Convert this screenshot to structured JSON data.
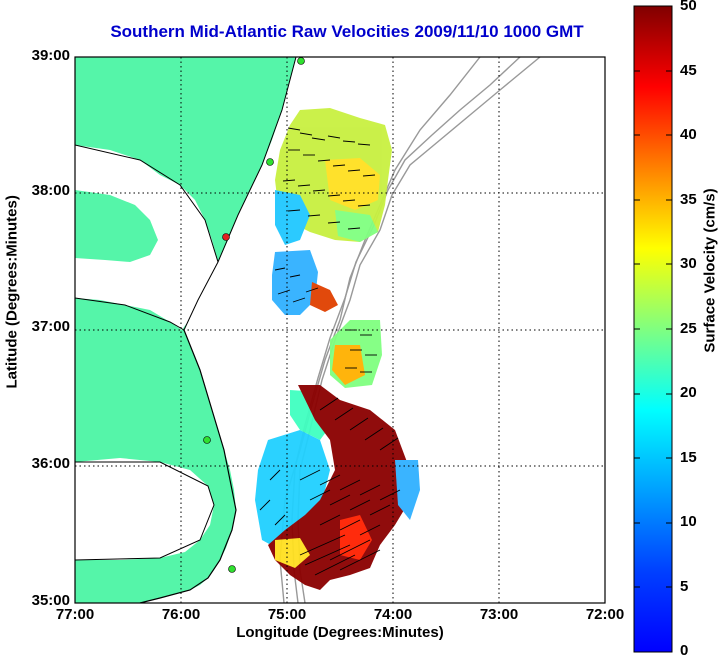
{
  "title": "Southern Mid-Atlantic Raw Velocities 2009/11/10 1000 GMT",
  "xlabel": "Longitude (Degrees:Minutes)",
  "ylabel": "Latitude (Degrees:Minutes)",
  "colorbar_label": "Surface Velocity (cm/s)",
  "xticks": [
    "77:00",
    "76:00",
    "75:00",
    "74:00",
    "73:00",
    "72:00"
  ],
  "yticks": [
    "39:00",
    "38:00",
    "37:00",
    "36:00",
    "35:00"
  ],
  "colorbar_ticks": [
    "50",
    "45",
    "40",
    "35",
    "30",
    "25",
    "20",
    "15",
    "10",
    "5",
    "0"
  ],
  "colors": {
    "land": "#55f5a9",
    "title": "#0000cc",
    "bathymetry": "#999999",
    "grid": "#000000"
  },
  "map": {
    "lon_range": [
      -77.0,
      -72.0
    ],
    "lat_range": [
      35.0,
      39.0
    ],
    "grid": true,
    "colorbar_range": [
      0,
      50
    ],
    "colormap": "jet",
    "features": [
      "land",
      "coastline",
      "bathymetry-contours",
      "radial-velocity-patches",
      "velocity-vectors",
      "station-markers"
    ],
    "stations_visible": 5
  }
}
